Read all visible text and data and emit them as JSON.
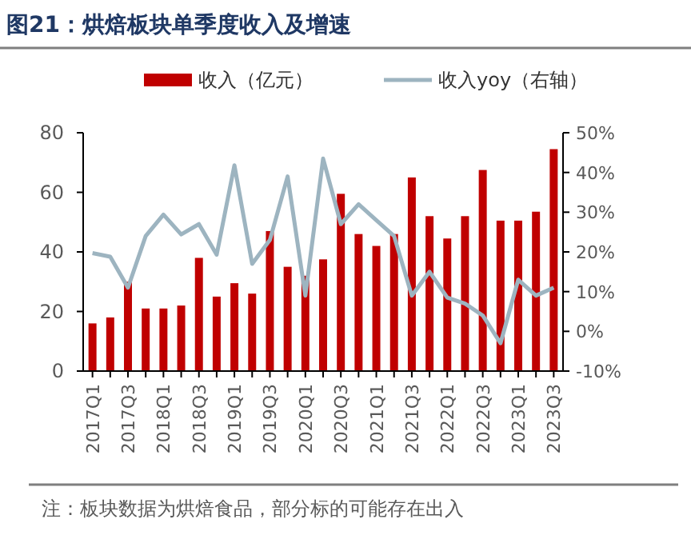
{
  "chart_data": {
    "type": "bar",
    "title": "图21：烘焙板块单季度收入及增速",
    "categories": [
      "2017Q1",
      null,
      "2017Q3",
      null,
      "2018Q1",
      null,
      "2018Q3",
      null,
      "2019Q1",
      null,
      "2019Q3",
      null,
      "2020Q1",
      null,
      "2020Q3",
      null,
      "2021Q1",
      null,
      "2021Q3",
      null,
      "2022Q1",
      null,
      "2022Q3",
      null,
      "2023Q1",
      null,
      "2023Q3"
    ],
    "series": [
      {
        "name": "收入（亿元）",
        "color": "#c00000",
        "values": [
          16,
          18,
          30,
          21,
          21,
          22,
          38,
          25,
          29.5,
          26,
          47,
          35,
          32,
          37.5,
          59.5,
          46,
          42,
          46,
          65,
          52,
          44.5,
          52,
          67.5,
          50.5,
          50.5,
          53.5,
          74.5
        ]
      },
      {
        "name": "收入yoy（右轴）",
        "type": "line",
        "axis": "y2",
        "color": "#9db4c0",
        "values": [
          19.7,
          18.8,
          11,
          24,
          29.4,
          24.4,
          27,
          19.3,
          41.8,
          17,
          23,
          39,
          9,
          43.5,
          27,
          32,
          28,
          24,
          9,
          15,
          8.5,
          7,
          4,
          -3,
          13,
          9,
          11
        ]
      }
    ],
    "ylim": [
      0,
      80
    ],
    "yticks": [
      0,
      20,
      40,
      60,
      80
    ],
    "y2lim": [
      -10,
      50
    ],
    "y2ticks": [
      {
        "value": -10,
        "label": "-10%"
      },
      {
        "value": 0,
        "label": "0%"
      },
      {
        "value": 10,
        "label": "10%"
      },
      {
        "value": 20,
        "label": "20%"
      },
      {
        "value": 30,
        "label": "30%"
      },
      {
        "value": 40,
        "label": "40%"
      },
      {
        "value": 50,
        "label": "50%"
      }
    ],
    "grid": false,
    "legend": "top",
    "marker": "none",
    "line_style": "solid",
    "annotations": [
      "注：板块数据为烘焙食品，部分标的可能存在出入"
    ]
  }
}
